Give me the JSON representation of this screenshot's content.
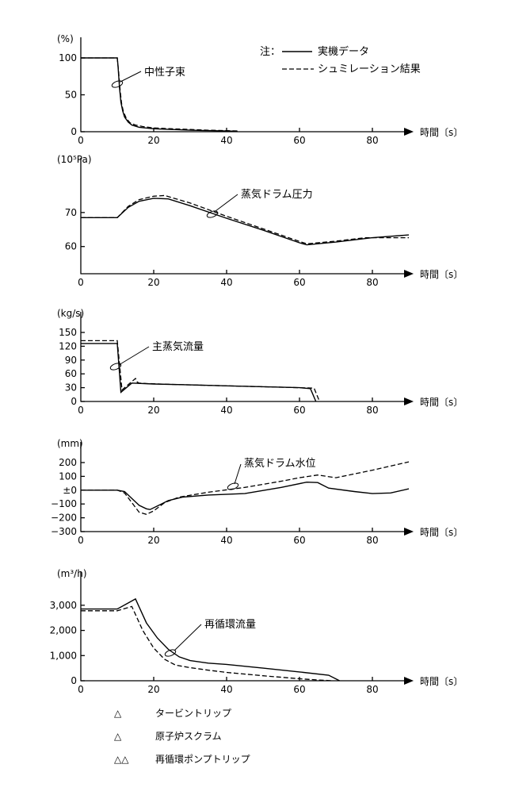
{
  "legend_note": {
    "prefix": "注：",
    "actual_label": "実機データ",
    "sim_label": "シュミレーション結果"
  },
  "event_legend": [
    {
      "symbol": "△",
      "label": "タービントリップ"
    },
    {
      "symbol": "△",
      "label": "原子炉スクラム"
    },
    {
      "symbol": "△△",
      "label": "再循環ポンプトリップ"
    }
  ],
  "chart_data": [
    {
      "type": "line",
      "unit_label": "(%)",
      "xlabel": "時間〔s〕",
      "annotation": "中性子束",
      "xlim": [
        0,
        90
      ],
      "ylim": [
        0,
        100
      ],
      "x_ticks": [
        "0",
        "20",
        "40",
        "60",
        "80"
      ],
      "y_ticks": [
        {
          "v": 0,
          "t": "0"
        },
        {
          "v": 50,
          "t": "50"
        },
        {
          "v": 100,
          "t": "100"
        }
      ],
      "series": [
        {
          "name": "実機データ",
          "style": "solid",
          "x": [
            0,
            10,
            10.2,
            10.6,
            11,
            11.5,
            12,
            13,
            14,
            16,
            20,
            25,
            30,
            35,
            40,
            43
          ],
          "y": [
            100,
            100,
            90,
            60,
            40,
            28,
            20,
            13,
            9,
            6,
            4,
            3,
            2,
            1.5,
            1,
            0.5
          ]
        },
        {
          "name": "シュミレーション結果",
          "style": "dashed",
          "x": [
            0,
            10,
            10.4,
            10.8,
            11.2,
            11.7,
            12.5,
            13.5,
            15,
            17,
            20,
            25,
            30,
            35,
            40,
            43
          ],
          "y": [
            100,
            100,
            80,
            55,
            38,
            27,
            18,
            12,
            9,
            7,
            5,
            4,
            3,
            2,
            1.5,
            1
          ]
        }
      ]
    },
    {
      "type": "line",
      "unit_label": "(10⁵Pa)",
      "xlabel": "時間〔s〕",
      "annotation": "蒸気ドラム圧力",
      "xlim": [
        0,
        90
      ],
      "ylim": [
        52,
        80
      ],
      "x_ticks": [
        "0",
        "20",
        "40",
        "60",
        "80"
      ],
      "y_ticks": [
        {
          "v": 60,
          "t": "60"
        },
        {
          "v": 70,
          "t": "70"
        }
      ],
      "series": [
        {
          "name": "実機データ",
          "style": "solid",
          "x": [
            0,
            10,
            13,
            16,
            20,
            24,
            30,
            40,
            50,
            60,
            62,
            70,
            80,
            90
          ],
          "y": [
            68.5,
            68.5,
            71.5,
            73.3,
            74.2,
            74.0,
            72.0,
            68.3,
            64.8,
            61.1,
            60.5,
            61.3,
            62.6,
            63.4
          ]
        },
        {
          "name": "シュミレーション結果",
          "style": "dashed",
          "x": [
            0,
            10,
            13,
            16,
            20,
            23,
            30,
            40,
            50,
            60,
            62,
            70,
            78,
            90
          ],
          "y": [
            68.5,
            68.5,
            71.8,
            73.8,
            74.8,
            75.0,
            72.8,
            68.9,
            65.2,
            61.5,
            60.8,
            61.6,
            62.6,
            62.6
          ]
        }
      ]
    },
    {
      "type": "line",
      "unit_label": "(kg/s)",
      "xlabel": "時間〔s〕",
      "annotation": "主蒸気流量",
      "xlim": [
        0,
        90
      ],
      "ylim": [
        0,
        150
      ],
      "x_ticks": [
        "0",
        "20",
        "40",
        "60",
        "80"
      ],
      "y_ticks": [
        {
          "v": 0,
          "t": "0"
        },
        {
          "v": 30,
          "t": "30"
        },
        {
          "v": 60,
          "t": "60"
        },
        {
          "v": 90,
          "t": "90"
        },
        {
          "v": 120,
          "t": "120"
        },
        {
          "v": 150,
          "t": "150"
        }
      ],
      "series": [
        {
          "name": "実機データ",
          "style": "solid",
          "x": [
            0,
            10,
            11,
            14,
            20,
            30,
            40,
            50,
            60,
            63,
            64.5
          ],
          "y": [
            126,
            126,
            20,
            40,
            38,
            36,
            34,
            32,
            30,
            28,
            0
          ]
        },
        {
          "name": "シュミレーション結果",
          "style": "dashed",
          "x": [
            0,
            10,
            11.3,
            15,
            15.5,
            16,
            18,
            25,
            35,
            45,
            55,
            64,
            65.5
          ],
          "y": [
            132,
            132,
            25,
            50,
            42,
            40,
            39,
            37,
            35,
            33,
            31,
            29,
            0
          ]
        }
      ]
    },
    {
      "type": "line",
      "unit_label": "(mm)",
      "xlabel": "時間〔s〕",
      "annotation": "蒸気ドラム水位",
      "xlim": [
        0,
        90
      ],
      "ylim": [
        -300,
        200
      ],
      "x_ticks": [
        "0",
        "20",
        "40",
        "60",
        "80"
      ],
      "y_ticks": [
        {
          "v": -300,
          "t": "−300"
        },
        {
          "v": -200,
          "t": "−200"
        },
        {
          "v": -100,
          "t": "−100"
        },
        {
          "v": 0,
          "t": "±0"
        },
        {
          "v": 100,
          "t": "100"
        },
        {
          "v": 200,
          "t": "200"
        }
      ],
      "series": [
        {
          "name": "実機データ",
          "style": "solid",
          "x": [
            0,
            10,
            12,
            14,
            16,
            18,
            19,
            21,
            24,
            28,
            35,
            45,
            55,
            62,
            65,
            68,
            75,
            80,
            85,
            90
          ],
          "y": [
            0,
            0,
            -10,
            -60,
            -110,
            -135,
            -140,
            -115,
            -75,
            -50,
            -35,
            -25,
            20,
            58,
            55,
            15,
            -10,
            -25,
            -20,
            10
          ]
        },
        {
          "name": "シュミレーション結果",
          "style": "dashed",
          "x": [
            0,
            10,
            12,
            14,
            16,
            18,
            20,
            23,
            27,
            35,
            45,
            55,
            60,
            65,
            70,
            80,
            90
          ],
          "y": [
            0,
            0,
            -20,
            -90,
            -160,
            -175,
            -150,
            -90,
            -50,
            -15,
            20,
            65,
            90,
            110,
            90,
            145,
            205
          ]
        }
      ]
    },
    {
      "type": "line",
      "unit_label": "(m³/h)",
      "xlabel": "時間〔s〕",
      "annotation": "再循環流量",
      "xlim": [
        0,
        90
      ],
      "ylim": [
        0,
        3500
      ],
      "x_ticks": [
        "0",
        "20",
        "40",
        "60",
        "80"
      ],
      "y_ticks": [
        {
          "v": 0,
          "t": "0"
        },
        {
          "v": 1000,
          "t": "1,000"
        },
        {
          "v": 2000,
          "t": "2,000"
        },
        {
          "v": 3000,
          "t": "3,000"
        }
      ],
      "series": [
        {
          "name": "実機データ",
          "style": "solid",
          "x": [
            0,
            10,
            15,
            18,
            21,
            24,
            27,
            30,
            35,
            40,
            50,
            60,
            68,
            71
          ],
          "y": [
            2850,
            2850,
            3250,
            2300,
            1700,
            1250,
            950,
            800,
            700,
            650,
            500,
            350,
            220,
            0
          ]
        },
        {
          "name": "シュミレーション結果",
          "style": "dashed",
          "x": [
            0,
            10,
            14,
            17,
            20,
            23,
            26,
            30,
            35,
            40,
            50,
            60,
            65,
            69
          ],
          "y": [
            2780,
            2780,
            2950,
            2000,
            1300,
            850,
            620,
            520,
            420,
            330,
            200,
            80,
            30,
            0
          ]
        }
      ]
    }
  ]
}
